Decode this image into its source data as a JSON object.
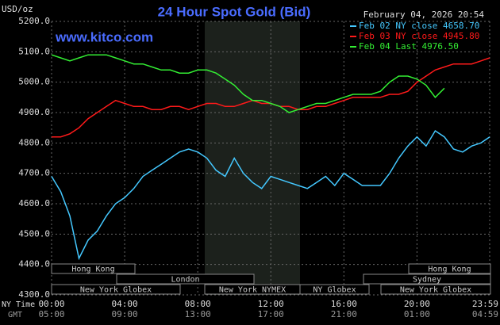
{
  "chart_data": {
    "type": "line",
    "title": "24 Hour Spot Gold (Bid)",
    "y_label": "USD/oz",
    "timestamp": "February 04, 2026 20:54",
    "watermark": "www.kitco.com",
    "x_label": "NY Time",
    "x2_label": "GMT",
    "xlim": [
      0,
      23.98
    ],
    "xticks": [
      {
        "value": 0,
        "label": "00:00"
      },
      {
        "value": 4,
        "label": "04:00"
      },
      {
        "value": 8,
        "label": "08:00"
      },
      {
        "value": 12,
        "label": "12:00"
      },
      {
        "value": 16,
        "label": "16:00"
      },
      {
        "value": 20,
        "label": "20:00"
      },
      {
        "value": 23.98,
        "label": "23:59"
      }
    ],
    "gmt_labels": [
      "05:00",
      "09:00",
      "13:00",
      "17:00",
      "21:00",
      "01:00",
      "04:59"
    ],
    "ylim": [
      4300,
      5200
    ],
    "yticks": [
      {
        "value": 4300,
        "label": "4300.0"
      },
      {
        "value": 4400,
        "label": "4400.0"
      },
      {
        "value": 4500,
        "label": "4500.0"
      },
      {
        "value": 4600,
        "label": "4600.0"
      },
      {
        "value": 4700,
        "label": "4700.0"
      },
      {
        "value": 4800,
        "label": "4800.0"
      },
      {
        "value": 4900,
        "label": "4900.0"
      },
      {
        "value": 5000,
        "label": "5000.0"
      },
      {
        "value": 5100,
        "label": "5100.0"
      },
      {
        "value": 5200,
        "label": "5200.0"
      }
    ],
    "grid": true,
    "sessions": [
      "Hong Kong",
      "London",
      "New York Globex",
      "New York NYMEX",
      "NY Globex",
      "Hong Kong",
      "Sydney",
      "New York Globex"
    ],
    "x": [
      0,
      0.5,
      1,
      1.5,
      2,
      2.5,
      3,
      3.5,
      4,
      4.5,
      5,
      5.5,
      6,
      6.5,
      7,
      7.5,
      8,
      8.5,
      9,
      9.5,
      10,
      10.5,
      11,
      11.5,
      12,
      12.5,
      13,
      13.5,
      14,
      14.5,
      15,
      15.5,
      16,
      16.5,
      17,
      17.5,
      18,
      18.5,
      19,
      19.5,
      20,
      20.5,
      21,
      21.5,
      22,
      22.5,
      23,
      23.5,
      23.98
    ],
    "series": [
      {
        "name": "Feb 02 NY close 4658.70",
        "color": "#44c8ff",
        "values": [
          4690,
          4640,
          4560,
          4420,
          4480,
          4510,
          4560,
          4600,
          4620,
          4650,
          4690,
          4710,
          4730,
          4750,
          4770,
          4780,
          4770,
          4750,
          4710,
          4690,
          4750,
          4700,
          4670,
          4650,
          4690,
          4680,
          4670,
          4660,
          4650,
          4670,
          4690,
          4660,
          4700,
          4680,
          4660,
          4660,
          4660,
          4700,
          4750,
          4790,
          4820,
          4790,
          4840,
          4820,
          4780,
          4770,
          4790,
          4800,
          4820
        ]
      },
      {
        "name": "Feb 03 NY close 4945.80",
        "color": "#ff1a1a",
        "values": [
          4820,
          4820,
          4830,
          4850,
          4880,
          4900,
          4920,
          4940,
          4930,
          4920,
          4920,
          4910,
          4910,
          4920,
          4920,
          4910,
          4920,
          4930,
          4930,
          4920,
          4920,
          4930,
          4940,
          4930,
          4930,
          4920,
          4920,
          4910,
          4910,
          4920,
          4920,
          4930,
          4940,
          4950,
          4950,
          4950,
          4950,
          4960,
          4960,
          4970,
          5000,
          5020,
          5040,
          5050,
          5060,
          5060,
          5060,
          5070,
          5080
        ]
      },
      {
        "name": "Feb 04 Last 4976.50",
        "color": "#33ee33",
        "values": [
          5090,
          5080,
          5070,
          5080,
          5090,
          5090,
          5090,
          5080,
          5070,
          5060,
          5060,
          5050,
          5040,
          5040,
          5030,
          5030,
          5040,
          5040,
          5030,
          5010,
          4990,
          4960,
          4940,
          4940,
          4930,
          4920,
          4900,
          4910,
          4920,
          4930,
          4930,
          4940,
          4950,
          4960,
          4960,
          4960,
          4970,
          5000,
          5020,
          5020,
          5010,
          4990,
          4950,
          4980,
          null,
          null,
          null,
          null,
          null
        ]
      }
    ]
  }
}
